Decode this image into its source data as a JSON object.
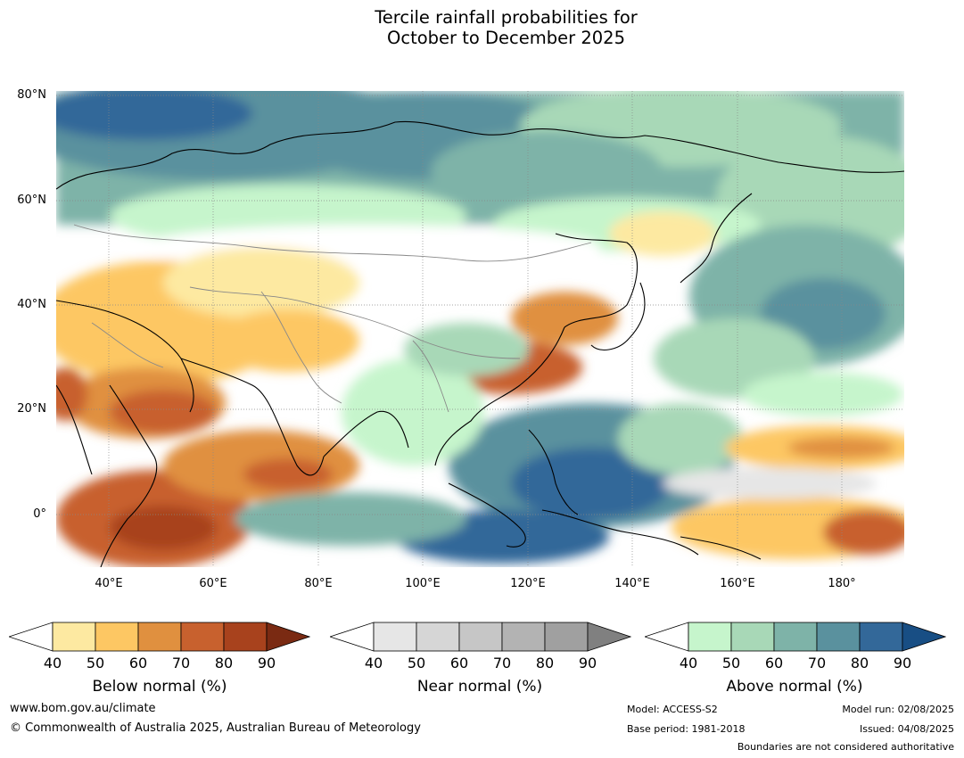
{
  "title": {
    "line1": "Tercile rainfall probabilities for",
    "line2": "October to December 2025"
  },
  "map": {
    "lat_labels": [
      "80°N",
      "60°N",
      "40°N",
      "20°N",
      "0°"
    ],
    "lon_labels": [
      "40°E",
      "60°E",
      "80°E",
      "100°E",
      "120°E",
      "140°E",
      "160°E",
      "180°"
    ],
    "extent": {
      "lon_min": 30,
      "lon_max": 192,
      "lat_min": -10,
      "lat_max": 81
    },
    "colors": {
      "ocean": "#ffffff",
      "coastline": "#000000",
      "border": "#888888",
      "graticule": "#888888"
    }
  },
  "legends": [
    {
      "title": "Below normal (%)",
      "ticks": [
        "40",
        "50",
        "60",
        "70",
        "80",
        "90"
      ],
      "colors": [
        "#fde9a1",
        "#fdc763",
        "#e0903f",
        "#c8612e",
        "#a8421d",
        "#7a2a12"
      ]
    },
    {
      "title": "Near normal (%)",
      "ticks": [
        "40",
        "50",
        "60",
        "70",
        "80",
        "90"
      ],
      "colors": [
        "#e6e6e6",
        "#d6d6d6",
        "#c6c6c6",
        "#b3b3b3",
        "#a0a0a0",
        "#808080"
      ]
    },
    {
      "title": "Above normal (%)",
      "ticks": [
        "40",
        "50",
        "60",
        "70",
        "80",
        "90"
      ],
      "colors": [
        "#c6f5cc",
        "#a8d8b7",
        "#7eb3a8",
        "#5a919e",
        "#336899",
        "#184e84"
      ]
    }
  ],
  "footer": {
    "website": "www.bom.gov.au/climate",
    "copyright": "© Commonwealth of Australia 2025, Australian Bureau of Meteorology",
    "model": "Model: ACCESS-S2",
    "base_period": "Base period: 1981-2018",
    "model_run": "Model run: 02/08/2025",
    "issued": "Issued: 04/08/2025",
    "disclaimer": "Boundaries are not considered authoritative"
  }
}
